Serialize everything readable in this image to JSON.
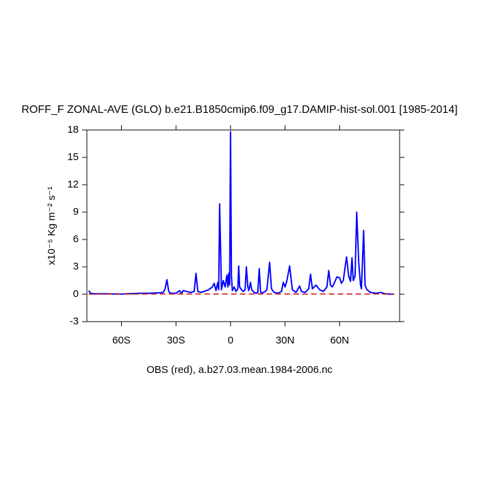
{
  "chart_data": {
    "type": "line",
    "title": "ROFF_F ZONAL-AVE (GLO) b.e21.B1850cmip6.f09_g17.DAMIP-hist-sol.001 [1985-2014]",
    "y_label": "x10⁻⁵ Kg m⁻² s⁻¹",
    "annotation": "OBS (red), a.b27.03.mean.1984-2006.nc",
    "xlim": [
      -79,
      93
    ],
    "ylim": [
      -3,
      18
    ],
    "xticks": [
      {
        "value": -60,
        "label": "60S"
      },
      {
        "value": -30,
        "label": "30S"
      },
      0,
      {
        "value": 30,
        "label": "30N"
      },
      {
        "value": 60,
        "label": "60N"
      }
    ],
    "yticks": [
      -3,
      0,
      3,
      6,
      9,
      12,
      15,
      18
    ],
    "x": [
      -78,
      -77,
      -75,
      -70,
      -60,
      -50,
      -45,
      -40,
      -37,
      -36,
      -35,
      -34,
      -33,
      -30,
      -28,
      -27,
      -26,
      -22,
      -20,
      -19,
      -18,
      -16,
      -12,
      -10,
      -9,
      -8,
      -7,
      -6.5,
      -6,
      -5,
      -4,
      -3,
      -2,
      -1.5,
      -1,
      -0.5,
      0,
      0.5,
      1,
      2,
      3,
      4,
      4.5,
      5,
      6,
      7,
      8,
      8.7,
      9.5,
      10,
      11,
      11.5,
      12,
      13,
      14,
      15,
      15.8,
      16.5,
      17,
      19,
      20,
      21.5,
      22.5,
      24,
      26,
      28,
      29,
      30,
      31,
      32.5,
      34,
      36,
      38,
      39,
      41,
      43,
      44,
      45,
      47,
      49,
      51,
      53,
      54,
      55,
      56,
      57,
      58.5,
      60,
      61,
      62,
      63.8,
      65,
      66,
      66.8,
      67.5,
      68.5,
      69.4,
      70.5,
      71.5,
      72,
      73.2,
      74,
      75,
      77,
      80,
      82.6,
      85,
      88,
      90
    ],
    "series": [
      {
        "color": "#0000ff",
        "values": [
          0.4,
          0.1,
          0.05,
          0.05,
          0.02,
          0.1,
          0.1,
          0.15,
          0.2,
          0.6,
          1.6,
          0.3,
          0.1,
          0.1,
          0.4,
          0.1,
          0.4,
          0.2,
          0.3,
          2.3,
          0.3,
          0.2,
          0.5,
          0.8,
          1.2,
          0.4,
          1.3,
          0.5,
          9.9,
          0.5,
          1.5,
          0.8,
          2.1,
          0.8,
          2.3,
          1.0,
          17.8,
          2.0,
          0.4,
          0.8,
          0.3,
          0.6,
          3.1,
          0.8,
          0.5,
          0.3,
          0.5,
          3.0,
          0.8,
          0.4,
          1.3,
          0.6,
          0.4,
          0.2,
          0.1,
          0.2,
          2.8,
          0.3,
          0.1,
          0.3,
          0.5,
          3.5,
          0.6,
          0.2,
          0.1,
          0.3,
          1.3,
          0.8,
          1.5,
          3.1,
          0.5,
          0.2,
          0.9,
          0.3,
          0.2,
          0.6,
          2.2,
          0.6,
          1.0,
          0.5,
          0.3,
          0.8,
          2.6,
          1.0,
          0.8,
          1.2,
          1.9,
          1.8,
          1.2,
          1.5,
          4.1,
          2.0,
          1.4,
          4.0,
          1.5,
          2.0,
          9.0,
          3.5,
          1.0,
          0.6,
          7.0,
          1.0,
          0.5,
          0.2,
          0.1,
          0.2,
          0.05,
          0.02,
          0.01
        ]
      },
      {
        "color": "#cc0000",
        "dashed": true,
        "values": [
          0.02,
          0.02,
          0.02,
          0.02,
          0.02,
          0.03,
          0.03,
          0.03,
          0.03,
          0.03,
          0.03,
          0.03,
          0.03,
          0.03,
          0.03,
          0.03,
          0.03,
          0.03,
          0.03,
          0.03,
          0.03,
          0.03,
          0.03,
          0.03,
          0.03,
          0.03,
          0.03,
          0.03,
          0.03,
          0.03,
          0.03,
          0.03,
          0.03,
          0.03,
          0.03,
          0.03,
          0.03,
          0.03,
          0.03,
          0.03,
          0.03,
          0.03,
          0.03,
          0.03,
          0.03,
          0.03,
          0.03,
          0.03,
          0.03,
          0.03,
          0.03,
          0.03,
          0.03,
          0.03,
          0.03,
          0.03,
          0.03,
          0.03,
          0.03,
          0.03,
          0.03,
          0.03,
          0.03,
          0.03,
          0.03,
          0.03,
          0.03,
          0.03,
          0.03,
          0.03,
          0.03,
          0.03,
          0.03,
          0.03,
          0.03,
          0.03,
          0.03,
          0.03,
          0.03,
          0.03,
          0.03,
          0.03,
          0.03,
          0.03,
          0.03,
          0.03,
          0.03,
          0.03,
          0.03,
          0.03,
          0.03,
          0.03,
          0.03,
          0.03,
          0.03,
          0.03,
          0.03,
          0.03,
          0.03,
          0.03,
          0.03,
          0.03,
          0.03,
          0.03,
          0.03,
          0.02,
          0.02,
          0.02,
          0.02
        ]
      }
    ]
  }
}
